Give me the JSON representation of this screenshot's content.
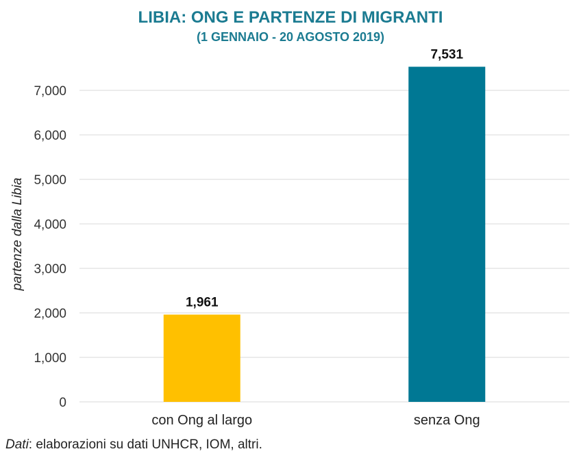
{
  "chart_data": {
    "type": "bar",
    "title": "LIBIA: ONG E PARTENZE DI MIGRANTI",
    "subtitle": "(1 GENNAIO - 20 AGOSTO 2019)",
    "ylabel": "partenze dalla Libia",
    "xlabel": "",
    "ylim": [
      0,
      7000
    ],
    "yticks": [
      0,
      1000,
      2000,
      3000,
      4000,
      5000,
      6000,
      7000
    ],
    "ytick_labels": [
      "0",
      "1,000",
      "2,000",
      "3,000",
      "4,000",
      "5,000",
      "6,000",
      "7,000"
    ],
    "categories": [
      "con Ong al largo",
      "senza Ong"
    ],
    "values": [
      1961,
      7531
    ],
    "value_labels": [
      "1,961",
      "7,531"
    ],
    "colors": [
      "#ffc000",
      "#007894"
    ],
    "grid": true,
    "legend": "none"
  },
  "source": {
    "prefix": "Dati",
    "text": ": elaborazioni su dati UNHCR, IOM, altri."
  },
  "colors": {
    "title": "#1b7b91",
    "grid": "#d9d9d9"
  }
}
